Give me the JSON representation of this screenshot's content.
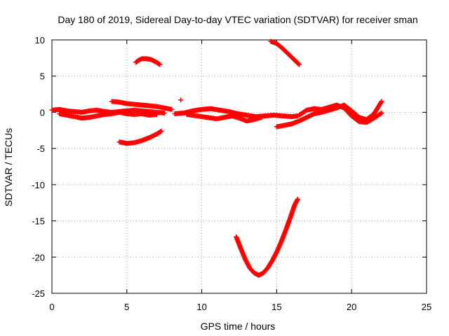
{
  "chart_data": {
    "type": "scatter",
    "title": "Day 180 of 2019, Sidereal Day-to-day VTEC variation (SDTVAR) for receiver sman",
    "xlabel": "GPS time / hours",
    "ylabel": "SDTVAR / TECUs",
    "xlim": [
      0,
      25
    ],
    "ylim": [
      -25,
      10
    ],
    "x_ticks": [
      0,
      5,
      10,
      15,
      20,
      25
    ],
    "y_ticks": [
      10,
      5,
      0,
      -5,
      -10,
      -15,
      -20,
      -25
    ],
    "grid": true,
    "marker": "+",
    "color": "#ff0000",
    "series": [
      {
        "name": "main-band-a",
        "x": [
          0.0,
          0.5,
          1.0,
          1.5,
          2.0,
          2.5,
          3.0,
          3.5,
          4.0,
          4.5,
          5.0,
          5.5,
          6.0,
          6.5,
          7.0,
          7.5
        ],
        "y": [
          0.3,
          0.4,
          0.2,
          0.1,
          0.0,
          0.2,
          0.3,
          0.1,
          0.0,
          0.1,
          0.2,
          0.3,
          0.2,
          0.1,
          0.0,
          -0.1
        ]
      },
      {
        "name": "main-band-b",
        "x": [
          0.5,
          1.0,
          1.5,
          2.0,
          2.5,
          3.0,
          3.5,
          4.0,
          4.5,
          5.0,
          5.5,
          6.0,
          6.5,
          7.0
        ],
        "y": [
          -0.2,
          -0.4,
          -0.6,
          -0.8,
          -0.7,
          -0.5,
          -0.3,
          -0.2,
          0.0,
          -0.2,
          -0.3,
          -0.2,
          -0.4,
          -0.3
        ]
      },
      {
        "name": "upper-left-band",
        "x": [
          4.0,
          4.5,
          5.0,
          5.5,
          6.0,
          6.5,
          7.0,
          7.5,
          8.0
        ],
        "y": [
          1.5,
          1.4,
          1.2,
          1.1,
          1.0,
          0.9,
          0.8,
          0.6,
          0.4
        ]
      },
      {
        "name": "lower-left-band",
        "x": [
          4.5,
          5.0,
          5.5,
          6.0,
          6.5,
          7.0,
          7.3
        ],
        "y": [
          -4.1,
          -4.3,
          -4.2,
          -3.9,
          -3.5,
          -3.0,
          -2.6
        ]
      },
      {
        "name": "upper-arc",
        "x": [
          5.6,
          5.8,
          6.0,
          6.3,
          6.6,
          6.9,
          7.2
        ],
        "y": [
          6.9,
          7.2,
          7.4,
          7.4,
          7.3,
          7.0,
          6.6
        ]
      },
      {
        "name": "isolated-point",
        "x": [
          8.6
        ],
        "y": [
          1.7
        ]
      },
      {
        "name": "mid-band",
        "x": [
          8.2,
          8.8,
          9.4,
          10.0,
          10.6,
          11.2,
          11.8,
          12.4,
          13.0,
          13.6,
          14.2,
          14.8,
          15.4,
          16.0,
          16.4
        ],
        "y": [
          -0.2,
          -0.1,
          0.2,
          0.4,
          0.5,
          0.3,
          0.1,
          -0.2,
          -0.4,
          -0.6,
          -0.5,
          -0.4,
          -0.5,
          -0.6,
          -0.5
        ]
      },
      {
        "name": "mid-band-lower",
        "x": [
          9.0,
          10.0,
          11.0,
          12.0,
          12.5,
          13.0,
          13.5,
          14.0
        ],
        "y": [
          -0.3,
          -0.6,
          -0.9,
          -0.5,
          -0.8,
          -1.2,
          -1.0,
          -0.7
        ]
      },
      {
        "name": "upper-right-arc",
        "x": [
          14.6,
          15.0,
          15.4,
          15.8,
          16.2,
          16.5
        ],
        "y": [
          9.8,
          9.5,
          8.8,
          8.0,
          7.2,
          6.6
        ]
      },
      {
        "name": "deep-dip",
        "x": [
          12.3,
          12.6,
          12.9,
          13.2,
          13.5,
          13.8,
          14.1,
          14.4,
          14.7,
          15.0,
          15.3,
          15.6,
          15.9,
          16.2,
          16.4
        ],
        "y": [
          -17.2,
          -18.8,
          -20.3,
          -21.5,
          -22.2,
          -22.5,
          -22.2,
          -21.5,
          -20.5,
          -19.3,
          -17.9,
          -16.3,
          -14.6,
          -12.8,
          -12.0
        ]
      },
      {
        "name": "right-band",
        "x": [
          16.5,
          17.0,
          17.5,
          18.0,
          18.5,
          19.0,
          19.5,
          20.0,
          20.5,
          21.0,
          21.5,
          22.0
        ],
        "y": [
          -0.4,
          0.3,
          0.5,
          0.4,
          0.7,
          1.0,
          0.6,
          -0.5,
          -1.3,
          -1.4,
          -0.8,
          -0.1
        ]
      },
      {
        "name": "right-band-lower",
        "x": [
          15.0,
          15.5,
          16.0,
          16.5,
          17.0,
          17.5,
          18.0,
          18.5,
          19.0,
          19.5,
          20.0,
          20.5,
          21.0,
          21.5,
          22.0
        ],
        "y": [
          -2.0,
          -1.8,
          -1.6,
          -1.2,
          -0.7,
          -0.2,
          0.0,
          0.3,
          0.6,
          1.0,
          0.2,
          -0.7,
          -1.0,
          -0.2,
          1.5
        ]
      }
    ]
  }
}
